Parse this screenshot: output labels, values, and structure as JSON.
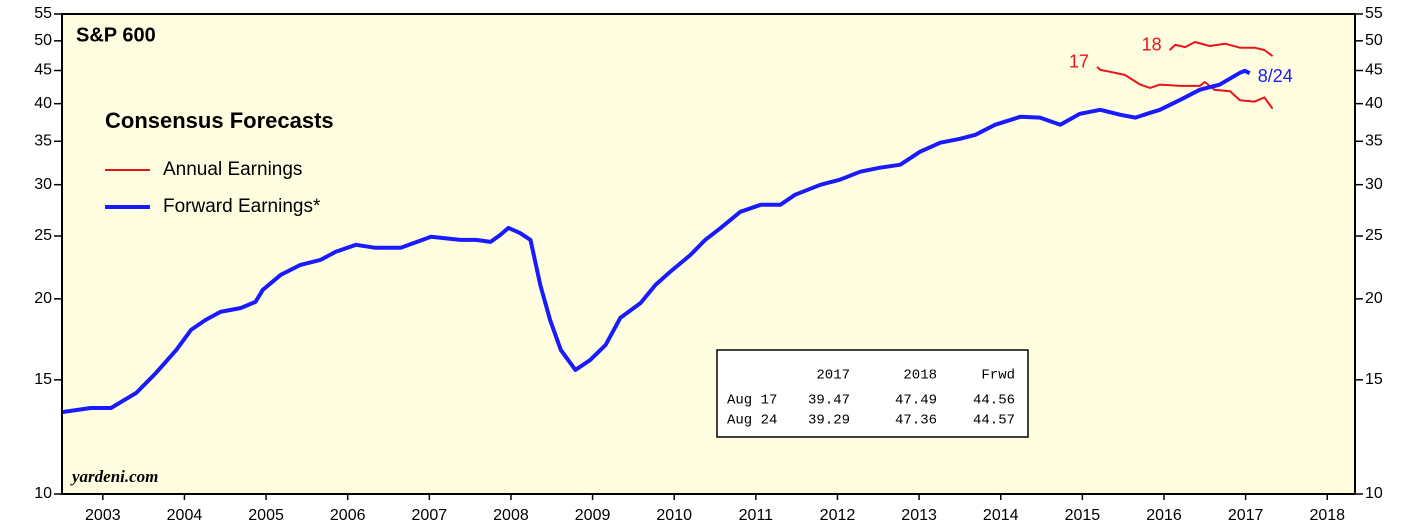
{
  "chart_data": {
    "type": "line",
    "title": "S&P 600",
    "subtitle": "Consensus Forecasts",
    "source": "yardeni.com",
    "yscale": "log",
    "ylim": [
      10,
      55
    ],
    "yticks": [
      10,
      15,
      20,
      25,
      30,
      35,
      40,
      45,
      50,
      55
    ],
    "xlim": [
      2003,
      2018.84
    ],
    "xticks": [
      {
        "value": 2003.5,
        "label": "2003"
      },
      {
        "value": 2004.5,
        "label": "2004"
      },
      {
        "value": 2005.5,
        "label": "2005"
      },
      {
        "value": 2006.5,
        "label": "2006"
      },
      {
        "value": 2007.5,
        "label": "2007"
      },
      {
        "value": 2008.5,
        "label": "2008"
      },
      {
        "value": 2009.5,
        "label": "2009"
      },
      {
        "value": 2010.5,
        "label": "2010"
      },
      {
        "value": 2011.5,
        "label": "2011"
      },
      {
        "value": 2012.5,
        "label": "2012"
      },
      {
        "value": 2013.5,
        "label": "2013"
      },
      {
        "value": 2014.5,
        "label": "2014"
      },
      {
        "value": 2015.5,
        "label": "2015"
      },
      {
        "value": 2016.5,
        "label": "2016"
      },
      {
        "value": 2017.5,
        "label": "2017"
      },
      {
        "value": 2018.5,
        "label": "2018"
      }
    ],
    "legend": [
      {
        "name": "Annual Earnings",
        "color": "#e8141b"
      },
      {
        "name": "Forward Earnings*",
        "color": "#1a1aff"
      }
    ],
    "series": [
      {
        "label": "17",
        "color": "#e8141b",
        "width": 2,
        "x": [
          2015.68,
          2015.72,
          2015.84,
          2016.02,
          2016.21,
          2016.33,
          2016.45,
          2016.7,
          2016.94,
          2017.0,
          2017.12,
          2017.31,
          2017.43,
          2017.61,
          2017.73,
          2017.83
        ],
        "values": [
          45.6,
          45.1,
          44.8,
          44.3,
          42.8,
          42.3,
          42.8,
          42.6,
          42.6,
          43.2,
          42.0,
          41.8,
          40.5,
          40.3,
          40.9,
          39.29
        ]
      },
      {
        "label": "18",
        "color": "#e8141b",
        "width": 2,
        "x": [
          2016.57,
          2016.64,
          2016.76,
          2016.88,
          2017.06,
          2017.25,
          2017.43,
          2017.61,
          2017.73,
          2017.83
        ],
        "values": [
          48.4,
          49.3,
          48.9,
          49.8,
          49.1,
          49.5,
          48.8,
          48.8,
          48.4,
          47.36
        ]
      },
      {
        "label": "8/24",
        "color": "#1a1aff",
        "width": 4,
        "x": [
          2003.01,
          2003.35,
          2003.6,
          2003.91,
          2004.15,
          2004.4,
          2004.58,
          2004.76,
          2004.94,
          2005.19,
          2005.37,
          2005.46,
          2005.68,
          2005.92,
          2006.17,
          2006.35,
          2006.6,
          2006.84,
          2007.15,
          2007.52,
          2007.88,
          2008.07,
          2008.25,
          2008.37,
          2008.47,
          2008.61,
          2008.74,
          2008.86,
          2008.98,
          2009.11,
          2009.29,
          2009.47,
          2009.66,
          2009.84,
          2010.09,
          2010.27,
          2010.45,
          2010.7,
          2010.88,
          2011.07,
          2011.31,
          2011.56,
          2011.8,
          2011.98,
          2012.29,
          2012.53,
          2012.78,
          2013.02,
          2013.27,
          2013.51,
          2013.76,
          2014.0,
          2014.19,
          2014.43,
          2014.74,
          2014.98,
          2015.23,
          2015.47,
          2015.72,
          2015.96,
          2016.15,
          2016.33,
          2016.45,
          2016.7,
          2016.94,
          2017.18,
          2017.43,
          2017.49,
          2017.55
        ],
        "values": [
          13.38,
          13.57,
          13.57,
          14.32,
          15.37,
          16.68,
          17.91,
          18.56,
          19.09,
          19.36,
          19.78,
          20.65,
          21.78,
          22.56,
          22.97,
          23.63,
          24.23,
          23.97,
          23.97,
          24.93,
          24.66,
          24.66,
          24.48,
          25.1,
          25.73,
          25.28,
          24.66,
          21.01,
          18.56,
          16.68,
          15.54,
          16.09,
          16.98,
          18.69,
          19.71,
          21.01,
          22.01,
          23.38,
          24.66,
          25.73,
          27.24,
          27.93,
          27.93,
          28.94,
          29.99,
          30.53,
          31.41,
          31.86,
          32.2,
          33.72,
          34.82,
          35.31,
          35.81,
          37.11,
          38.18,
          38.07,
          37.11,
          38.59,
          39.14,
          38.46,
          38.07,
          38.73,
          39.14,
          40.55,
          42.03,
          42.78,
          44.64,
          44.96,
          44.57
        ]
      }
    ],
    "table": {
      "columns": [
        "2017",
        "2018",
        "Frwd"
      ],
      "rows": [
        {
          "label": "Aug 17",
          "values": [
            "39.47",
            "47.49",
            "44.56"
          ]
        },
        {
          "label": "Aug 24",
          "values": [
            "39.29",
            "47.36",
            "44.57"
          ]
        }
      ]
    }
  }
}
